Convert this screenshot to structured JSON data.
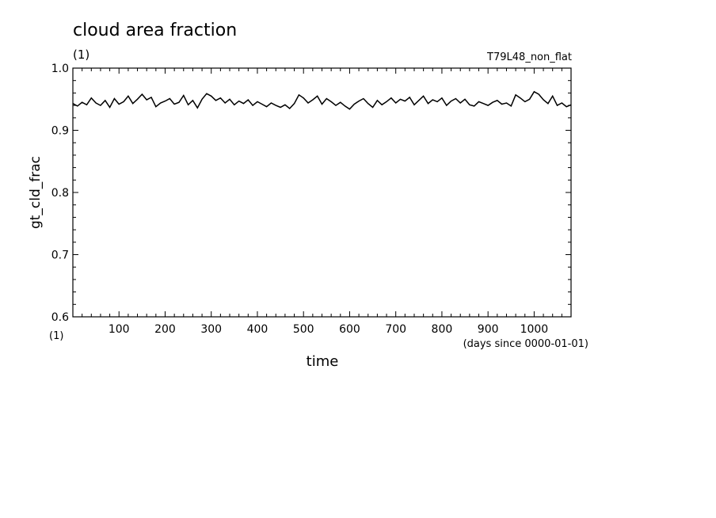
{
  "chart_data": {
    "type": "line",
    "title": "cloud area fraction",
    "unit": "(1)",
    "experiment": "T79L48_non_flat",
    "ylabel": "gt_cld_frac",
    "y_unit": "(1)",
    "xlabel": "time",
    "x_unit": "(days since 0000-01-01)",
    "xlim": [
      0,
      1080
    ],
    "ylim": [
      0.6,
      1.0
    ],
    "x_ticks": [
      100,
      200,
      300,
      400,
      500,
      600,
      700,
      800,
      900,
      1000
    ],
    "y_ticks": [
      "0.6",
      "0.7",
      "0.8",
      "0.9",
      "1.0"
    ],
    "series": [
      {
        "color": "#000000",
        "x": [
          0,
          10,
          20,
          30,
          40,
          50,
          60,
          70,
          80,
          90,
          100,
          110,
          120,
          130,
          140,
          150,
          160,
          170,
          180,
          190,
          200,
          210,
          220,
          230,
          240,
          250,
          260,
          270,
          280,
          290,
          300,
          310,
          320,
          330,
          340,
          350,
          360,
          370,
          380,
          390,
          400,
          410,
          420,
          430,
          440,
          450,
          460,
          470,
          480,
          490,
          500,
          510,
          520,
          530,
          540,
          550,
          560,
          570,
          580,
          590,
          600,
          610,
          620,
          630,
          640,
          650,
          660,
          670,
          680,
          690,
          700,
          710,
          720,
          730,
          740,
          750,
          760,
          770,
          780,
          790,
          800,
          810,
          820,
          830,
          840,
          850,
          860,
          870,
          880,
          890,
          900,
          910,
          920,
          930,
          940,
          950,
          960,
          970,
          980,
          990,
          1000,
          1010,
          1020,
          1030,
          1040,
          1050,
          1060,
          1070,
          1080
        ],
        "y": [
          0.943,
          0.939,
          0.945,
          0.941,
          0.952,
          0.944,
          0.94,
          0.948,
          0.937,
          0.951,
          0.942,
          0.946,
          0.955,
          0.943,
          0.95,
          0.958,
          0.949,
          0.953,
          0.938,
          0.944,
          0.947,
          0.951,
          0.942,
          0.945,
          0.956,
          0.941,
          0.948,
          0.936,
          0.95,
          0.959,
          0.955,
          0.948,
          0.952,
          0.944,
          0.95,
          0.941,
          0.947,
          0.943,
          0.949,
          0.94,
          0.946,
          0.942,
          0.938,
          0.944,
          0.94,
          0.937,
          0.941,
          0.935,
          0.943,
          0.957,
          0.952,
          0.944,
          0.949,
          0.955,
          0.942,
          0.951,
          0.946,
          0.94,
          0.945,
          0.939,
          0.934,
          0.942,
          0.947,
          0.951,
          0.943,
          0.937,
          0.948,
          0.941,
          0.946,
          0.952,
          0.944,
          0.95,
          0.947,
          0.953,
          0.941,
          0.948,
          0.955,
          0.943,
          0.949,
          0.946,
          0.952,
          0.94,
          0.947,
          0.951,
          0.944,
          0.95,
          0.941,
          0.939,
          0.946,
          0.943,
          0.94,
          0.945,
          0.948,
          0.942,
          0.944,
          0.939,
          0.957,
          0.952,
          0.946,
          0.95,
          0.962,
          0.958,
          0.949,
          0.943,
          0.955,
          0.94,
          0.944,
          0.938,
          0.941
        ]
      }
    ]
  }
}
